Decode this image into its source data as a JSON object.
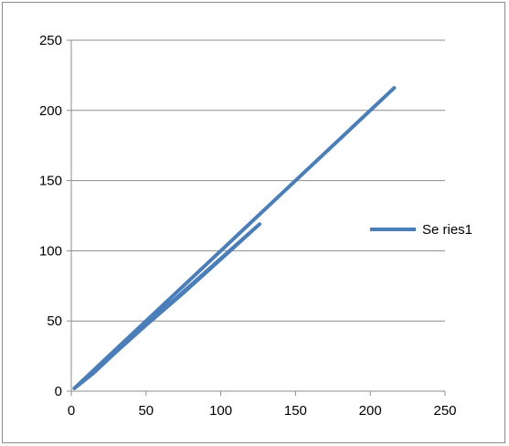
{
  "chart_data": {
    "type": "line",
    "xlim": [
      0,
      250
    ],
    "ylim": [
      0,
      250
    ],
    "x_ticks": [
      0,
      50,
      100,
      150,
      200,
      250
    ],
    "y_ticks": [
      0,
      50,
      100,
      150,
      200,
      250
    ],
    "x_tick_labels": [
      "0",
      "50",
      "100",
      "150",
      "200",
      "250"
    ],
    "y_tick_labels": [
      "0",
      "50",
      "100",
      "150",
      "200",
      "250"
    ],
    "grid": "horizontal",
    "legend_position": "right",
    "series": [
      {
        "name": "Se ries1",
        "color": "#4a7ebb",
        "points": [
          [
            2,
            2
          ],
          [
            15,
            13
          ],
          [
            30,
            28
          ],
          [
            50,
            47
          ],
          [
            75,
            70
          ],
          [
            100,
            94
          ],
          [
            126,
            119
          ],
          [
            2,
            2
          ],
          [
            20,
            20
          ],
          [
            60,
            60
          ],
          [
            100,
            100
          ],
          [
            150,
            150
          ],
          [
            216,
            216
          ]
        ]
      }
    ]
  }
}
